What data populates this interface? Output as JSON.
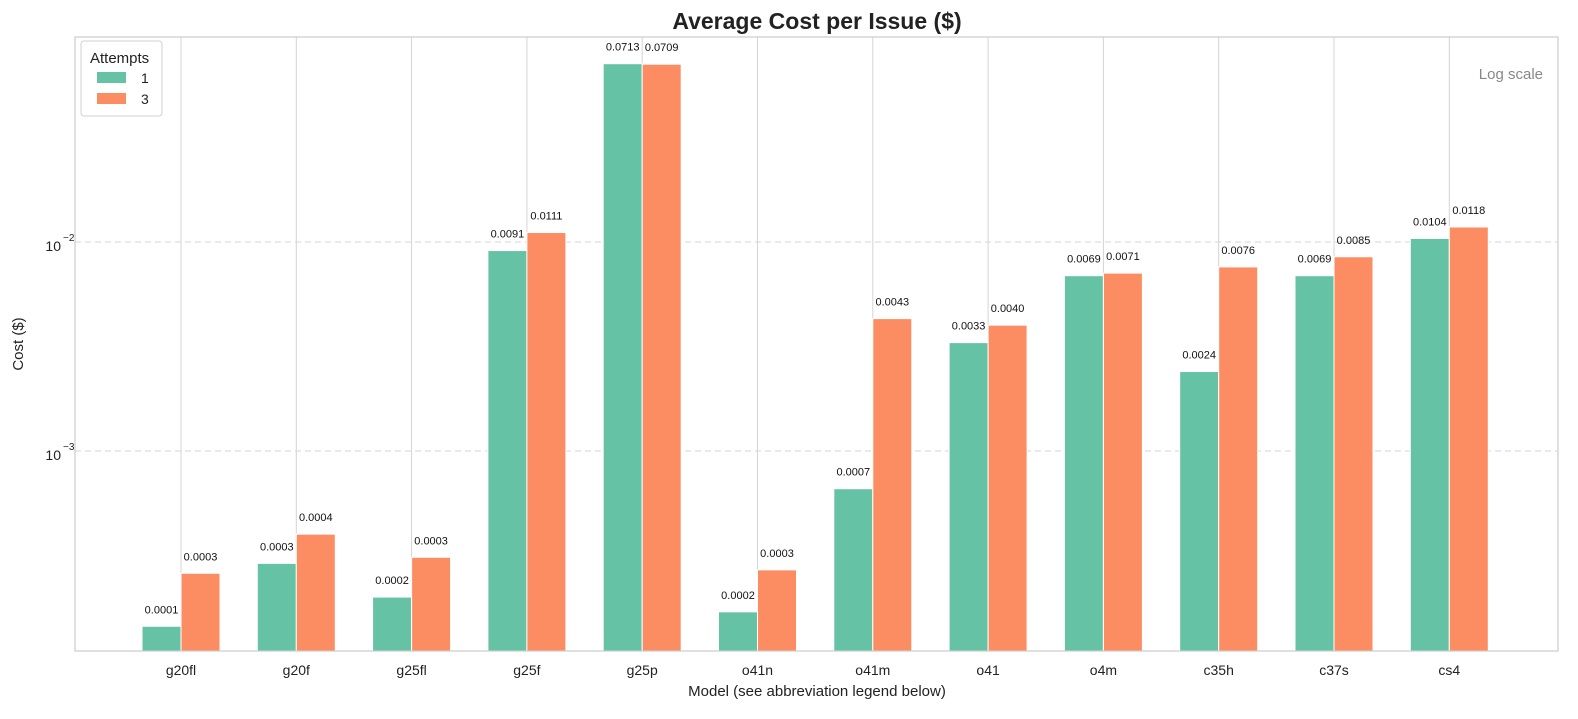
{
  "chart_data": {
    "type": "bar",
    "title": "Average Cost per Issue ($)",
    "xlabel": "Model (see abbreviation legend below)",
    "ylabel": "Cost ($)",
    "yscale": "log",
    "ylim": [
      0.00012,
      0.09
    ],
    "y_ticks": [
      {
        "value": 0.01,
        "base": "10",
        "exp": "−2"
      },
      {
        "value": 0.001,
        "base": "10",
        "exp": "−3"
      }
    ],
    "grid": {
      "y": true,
      "x_at_categories": true
    },
    "annotation": "Log scale",
    "legend": {
      "title": "Attempts",
      "position": "top-left"
    },
    "categories": [
      "g20fl",
      "g20f",
      "g25fl",
      "g25f",
      "g25p",
      "o41n",
      "o41m",
      "o41",
      "o4m",
      "c35h",
      "c37s",
      "cs4"
    ],
    "series": [
      {
        "name": "1",
        "color": "#66c2a5",
        "values": [
          0.000145,
          0.00029,
          0.0002,
          0.0091,
          0.0713,
          0.00017,
          0.00066,
          0.0033,
          0.0069,
          0.0024,
          0.0069,
          0.0104
        ],
        "labels": [
          "0.0001",
          "0.0003",
          "0.0002",
          "0.0091",
          "0.0713",
          "0.0002",
          "0.0007",
          "0.0033",
          "0.0069",
          "0.0024",
          "0.0069",
          "0.0104"
        ]
      },
      {
        "name": "3",
        "color": "#fc8d62",
        "values": [
          0.00026,
          0.0004,
          0.00031,
          0.0111,
          0.0709,
          0.00027,
          0.0043,
          0.004,
          0.0071,
          0.0076,
          0.0085,
          0.0118
        ],
        "labels": [
          "0.0003",
          "0.0004",
          "0.0003",
          "0.0111",
          "0.0709",
          "0.0003",
          "0.0043",
          "0.0040",
          "0.0071",
          "0.0076",
          "0.0085",
          "0.0118"
        ]
      }
    ]
  }
}
